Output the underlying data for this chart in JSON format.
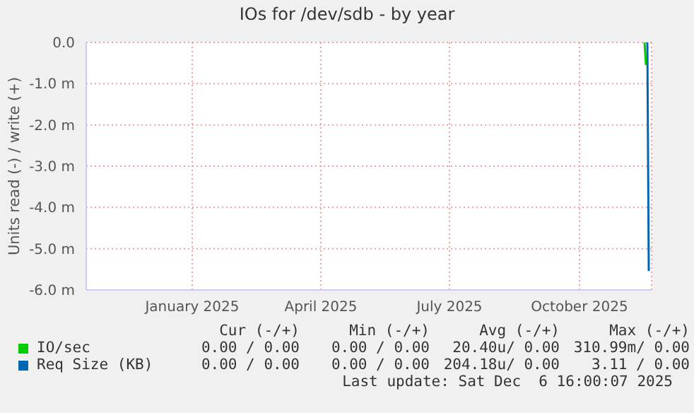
{
  "chart_data": {
    "type": "line",
    "title": "IOs for /dev/sdb - by year",
    "ylabel": "Units read (-) / write (+)",
    "xlim": [
      "2024-11-01",
      "2025-12-06"
    ],
    "xticks": [
      {
        "value": "2025-01-15",
        "label": "January 2025"
      },
      {
        "value": "2025-04-16",
        "label": "April 2025"
      },
      {
        "value": "2025-07-16",
        "label": "July 2025"
      },
      {
        "value": "2025-10-16",
        "label": "October 2025"
      }
    ],
    "ylim": [
      -6,
      0
    ],
    "yticks": [
      {
        "value": -6,
        "label": "-6.0 m"
      },
      {
        "value": -5,
        "label": "-5.0 m"
      },
      {
        "value": -4,
        "label": "-4.0 m"
      },
      {
        "value": -3,
        "label": "-3.0 m"
      },
      {
        "value": -2,
        "label": "-2.0 m"
      },
      {
        "value": -1,
        "label": "-1.0 m"
      },
      {
        "value": 0,
        "label": "0.0"
      }
    ],
    "grid": true,
    "legend": "bottom",
    "series": [
      {
        "name": "IO/sec",
        "color": "#00cc00",
        "x": [
          "2025-12-01",
          "2025-12-02"
        ],
        "values": [
          0,
          -0.55
        ]
      },
      {
        "name": "Req Size (KB)",
        "color": "#0066b3",
        "x": [
          "2025-12-03",
          "2025-12-04"
        ],
        "values": [
          0,
          -5.54
        ]
      }
    ],
    "annotations": [
      "Cur (-/+)",
      "Min (-/+)",
      "Avg (-/+)",
      "Max (-/+)",
      "0.00 / 0.00",
      "0.00 / 0.00",
      "20.40u/ 0.00",
      "310.99m/ 0.00",
      "0.00 / 0.00",
      "0.00 / 0.00",
      "204.18u/ 0.00",
      "3.11 / 0.00",
      "Last update: Sat Dec  6 16:00:07 2025"
    ]
  }
}
